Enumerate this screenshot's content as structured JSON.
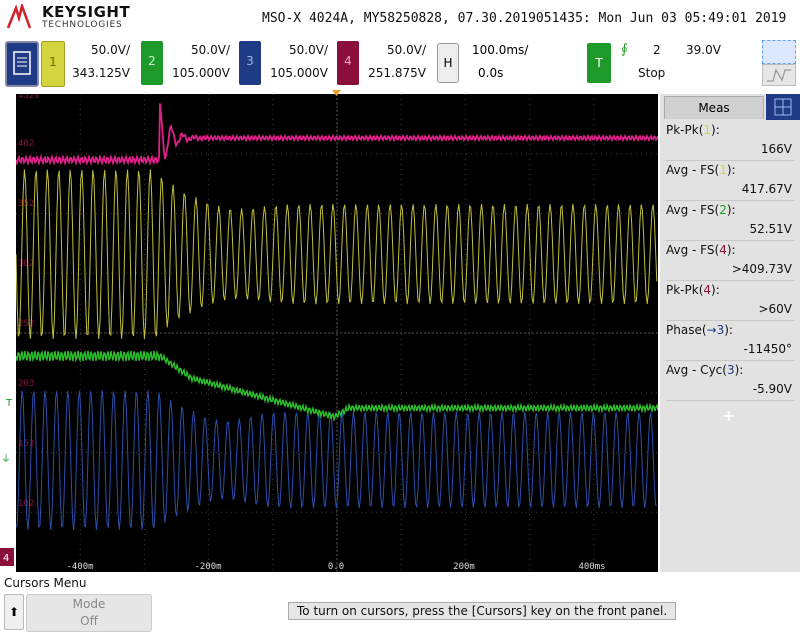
{
  "header": {
    "brand": "KEYSIGHT",
    "brand_sub": "TECHNOLOGIES",
    "title": "MSO-X 4024A, MY58250828, 07.30.2019051435: Mon Jun 03 05:49:01 2019"
  },
  "channels": [
    {
      "num": "1",
      "scale": "50.0V/",
      "offset": "343.125V",
      "color": "#d4d440"
    },
    {
      "num": "2",
      "scale": "50.0V/",
      "offset": "105.000V",
      "color": "#1e9a2a"
    },
    {
      "num": "3",
      "scale": "50.0V/",
      "offset": "105.000V",
      "color": "#1f3b86"
    },
    {
      "num": "4",
      "scale": "50.0V/",
      "offset": "251.875V",
      "color": "#8a0f3b"
    }
  ],
  "horizontal": {
    "label": "H",
    "scale": "100.0ms/",
    "offset": "0.0s"
  },
  "trigger": {
    "label": "T",
    "slope_icon": "rising-edge",
    "slope_glyph": "∮",
    "channel": "2",
    "level": "39.0V",
    "mode": "Stop"
  },
  "grid_labels": [
    "452V",
    "402",
    "352",
    "302",
    "252",
    "203",
    "153",
    "102"
  ],
  "time_labels": [
    "-400m",
    "-200m",
    "0.0",
    "200m",
    "400ms"
  ],
  "markers": {
    "trigger_mark": "T",
    "ch4_mark": "4"
  },
  "measurements": {
    "tab": "Meas",
    "items": [
      {
        "label_pre": "Pk-Pk(",
        "ch": "1",
        "ch_color": "#d4d440",
        "label_post": "):",
        "value": "166V"
      },
      {
        "label_pre": "Avg - FS(",
        "ch": "1",
        "ch_color": "#d4d440",
        "label_post": "):",
        "value": "417.67V"
      },
      {
        "label_pre": "Avg - FS(",
        "ch": "2",
        "ch_color": "#1e9a2a",
        "label_post": "):",
        "value": "52.51V"
      },
      {
        "label_pre": "Avg - FS(",
        "ch": "4",
        "ch_color": "#8a0f3b",
        "label_post": "):",
        "value": ">409.73V"
      },
      {
        "label_pre": "Pk-Pk(",
        "ch": "4",
        "ch_color": "#8a0f3b",
        "label_post": "):",
        "value": ">60V"
      },
      {
        "label_pre": "Phase(",
        "ch": "→3",
        "ch_color": "#1f3b86",
        "label_post": "):",
        "value": "-11450°"
      },
      {
        "label_pre": "Avg - Cyc(",
        "ch": "3",
        "ch_color": "#1f3b86",
        "label_post": "):",
        "value": "-5.90V"
      }
    ],
    "add_glyph": "+"
  },
  "softkeys": {
    "menu_title": "Cursors Menu",
    "back_glyph": "⬆",
    "mode_label": "Mode",
    "mode_value": "Off",
    "hint": "To turn on cursors, press the [Cursors] key on the front panel."
  }
}
